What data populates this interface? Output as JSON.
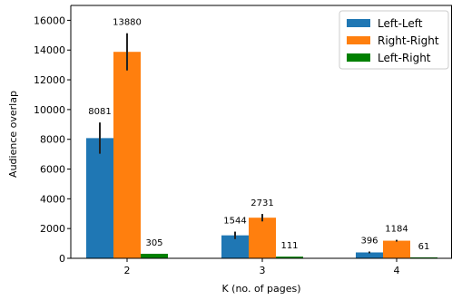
{
  "chart_data": {
    "type": "bar",
    "title": "",
    "xlabel": "K (no. of pages)",
    "ylabel": "Audience overlap",
    "categories": [
      "2",
      "3",
      "4"
    ],
    "ylim": [
      0,
      17000
    ],
    "yticks": [
      0,
      2000,
      4000,
      6000,
      8000,
      10000,
      12000,
      14000,
      16000
    ],
    "grid": false,
    "legend_position": "top-right",
    "series": [
      {
        "name": "Left-Left",
        "color": "#1f77b4",
        "values": [
          8081,
          1544,
          396
        ],
        "error": [
          1050,
          250,
          60
        ],
        "labels": [
          "8081",
          "1544",
          "396"
        ]
      },
      {
        "name": "Right-Right",
        "color": "#ff7f0e",
        "values": [
          13880,
          2731,
          1184
        ],
        "error": [
          1250,
          250,
          60
        ],
        "labels": [
          "13880",
          "2731",
          "1184"
        ]
      },
      {
        "name": "Left-Right",
        "color": "#008000",
        "values": [
          305,
          111,
          61
        ],
        "error": [
          0,
          0,
          0
        ],
        "labels": [
          "305",
          "111",
          "61"
        ]
      }
    ]
  }
}
